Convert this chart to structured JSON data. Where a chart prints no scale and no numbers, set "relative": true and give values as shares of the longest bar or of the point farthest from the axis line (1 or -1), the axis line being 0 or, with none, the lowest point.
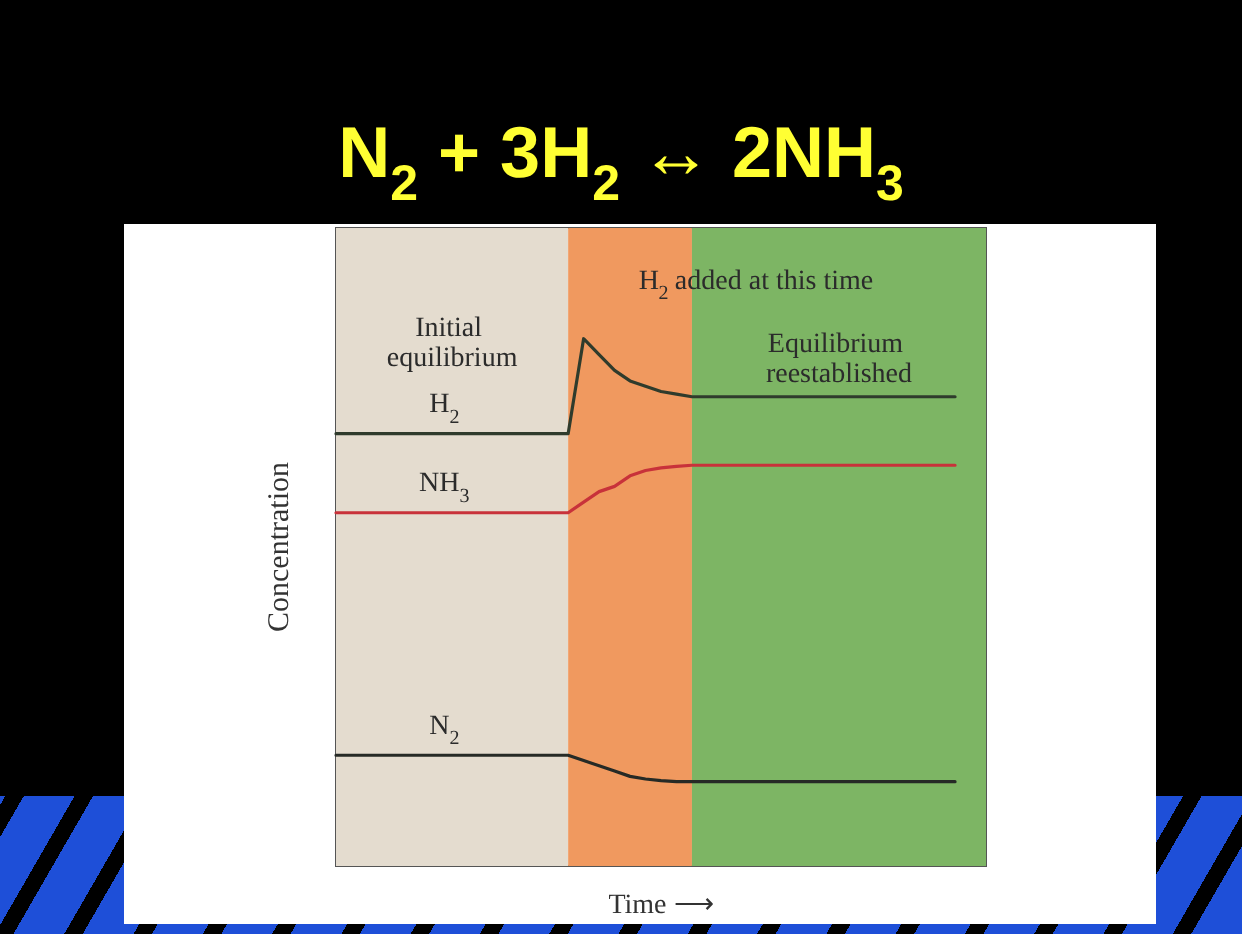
{
  "chart_data": {
    "type": "line",
    "title": "N$_{2}$ + 3H$_{2}$ ↔ 2NH$_{3}$",
    "xlabel": "Time ⟶",
    "ylabel": "Concentration",
    "relative": true,
    "categories": [
      null,
      null,
      null,
      null,
      null,
      null,
      null,
      null,
      null,
      null,
      null,
      null,
      null,
      null,
      null,
      null,
      null,
      null,
      null,
      null,
      null,
      null,
      null,
      null,
      null,
      null,
      null,
      null,
      null,
      null,
      null,
      null,
      null,
      null,
      null,
      null,
      null,
      null,
      null,
      null,
      null,
      null,
      null
    ],
    "series": [
      {
        "name": "H$_{2}$",
        "color": "#2f3b2c",
        "values": [
          0.82,
          0.82,
          0.82,
          0.82,
          0.82,
          0.82,
          0.82,
          0.82,
          0.82,
          0.82,
          0.82,
          0.82,
          0.82,
          0.82,
          0.82,
          0.82,
          1.0,
          0.97,
          0.94,
          0.92,
          0.91,
          0.9,
          0.895,
          0.89,
          0.89,
          0.89,
          0.89,
          0.89,
          0.89,
          0.89,
          0.89,
          0.89,
          0.89,
          0.89,
          0.89,
          0.89,
          0.89,
          0.89,
          0.89,
          0.89,
          0.89,
          null,
          null
        ]
      },
      {
        "name": "NH$_{3}$",
        "color": "#c8323a",
        "values": [
          0.67,
          0.67,
          0.67,
          0.67,
          0.67,
          0.67,
          0.67,
          0.67,
          0.67,
          0.67,
          0.67,
          0.67,
          0.67,
          0.67,
          0.67,
          0.67,
          0.69,
          0.71,
          0.72,
          0.74,
          0.75,
          0.755,
          0.758,
          0.76,
          0.76,
          0.76,
          0.76,
          0.76,
          0.76,
          0.76,
          0.76,
          0.76,
          0.76,
          0.76,
          0.76,
          0.76,
          0.76,
          0.76,
          0.76,
          0.76,
          0.76,
          null,
          null
        ]
      },
      {
        "name": "N$_{2}$",
        "color": "#262a26",
        "values": [
          0.21,
          0.21,
          0.21,
          0.21,
          0.21,
          0.21,
          0.21,
          0.21,
          0.21,
          0.21,
          0.21,
          0.21,
          0.21,
          0.21,
          0.21,
          0.21,
          0.2,
          0.19,
          0.18,
          0.17,
          0.165,
          0.162,
          0.16,
          0.16,
          0.16,
          0.16,
          0.16,
          0.16,
          0.16,
          0.16,
          0.16,
          0.16,
          0.16,
          0.16,
          0.16,
          0.16,
          0.16,
          0.16,
          0.16,
          0.16,
          0.16,
          null,
          null
        ]
      }
    ],
    "annotations": [
      "H$_{2}$ added at this time",
      "Initial equilibrium",
      "Equilibrium reestablished"
    ],
    "line_style": "solid",
    "marker": "none"
  }
}
